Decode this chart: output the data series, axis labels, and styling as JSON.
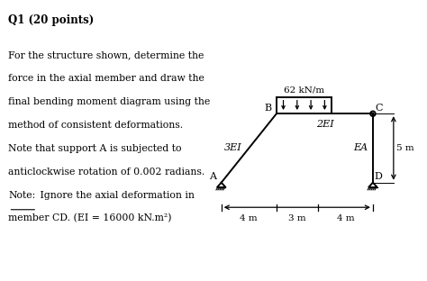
{
  "title": "Q1 (20 points)",
  "description_lines": [
    "For the structure shown, determine the",
    "force in the axial member and draw the",
    "final bending moment diagram using the",
    "method of consistent deformations.",
    "Note that support A is subjected to",
    "anticlockwise rotation of 0.002 radians.",
    "Note: Ignore the axial deformation in",
    "member CD. (EI = 16000 kN.m²)"
  ],
  "load_label": "62 kN/m",
  "member_labels": [
    "3EI",
    "2EI",
    "EA"
  ],
  "dim_labels": [
    "4 m",
    "3 m",
    "4 m"
  ],
  "side_dim": "5 m",
  "A": [
    0,
    0
  ],
  "B": [
    4,
    5
  ],
  "C": [
    11,
    5
  ],
  "D": [
    11,
    0
  ]
}
